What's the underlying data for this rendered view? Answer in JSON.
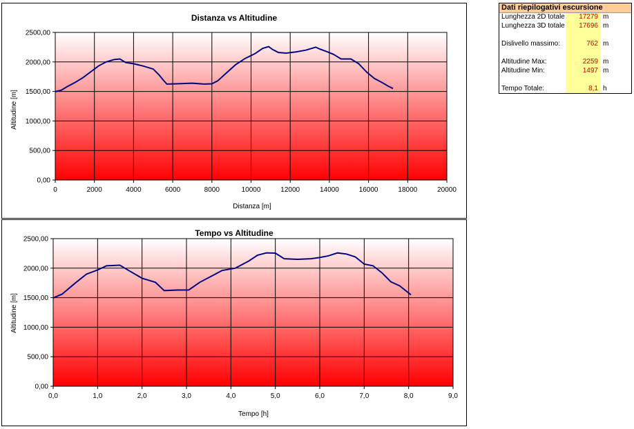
{
  "charts": [
    {
      "type": "line",
      "title": "Distanza vs Altitudine",
      "xlabel": "Distanza [m]",
      "ylabel": "Altitudine [m]",
      "xlim": [
        0,
        20000
      ],
      "ylim": [
        0,
        2500
      ],
      "x_ticks": [
        "0",
        "2000",
        "4000",
        "6000",
        "8000",
        "10000",
        "12000",
        "14000",
        "16000",
        "18000",
        "20000"
      ],
      "y_ticks": [
        "0,00",
        "500,00",
        "1000,00",
        "1500,00",
        "2000,00",
        "2500,00"
      ],
      "grid": true,
      "line_color": "#000080",
      "x": [
        0,
        300,
        600,
        1000,
        1400,
        1800,
        2200,
        2600,
        3000,
        3300,
        3600,
        4000,
        4500,
        5000,
        5300,
        5500,
        5700,
        6200,
        7000,
        7600,
        8000,
        8300,
        8700,
        9200,
        9700,
        10200,
        10600,
        10900,
        11100,
        11400,
        11800,
        12300,
        12800,
        13300,
        13500,
        13900,
        14200,
        14600,
        15100,
        15500,
        15900,
        16300,
        16700,
        17000,
        17250
      ],
      "y": [
        1497,
        1520,
        1580,
        1650,
        1730,
        1830,
        1930,
        2000,
        2040,
        2050,
        1990,
        1970,
        1930,
        1880,
        1780,
        1700,
        1625,
        1630,
        1640,
        1625,
        1630,
        1680,
        1800,
        1950,
        2060,
        2140,
        2230,
        2259,
        2210,
        2160,
        2150,
        2170,
        2200,
        2250,
        2220,
        2170,
        2130,
        2050,
        2050,
        1970,
        1830,
        1720,
        1650,
        1590,
        1550
      ]
    },
    {
      "type": "line",
      "title": "Tempo vs Altitudine",
      "xlabel": "Tempo [h]",
      "ylabel": "Altitudine [m]",
      "xlim": [
        0,
        9
      ],
      "ylim": [
        0,
        2500
      ],
      "x_ticks": [
        "0,0",
        "1,0",
        "2,0",
        "3,0",
        "4,0",
        "5,0",
        "6,0",
        "7,0",
        "8,0",
        "9,0"
      ],
      "y_ticks": [
        "0,00",
        "500,00",
        "1000,00",
        "1500,00",
        "2000,00",
        "2500,00"
      ],
      "grid": true,
      "line_color": "#000080",
      "x": [
        0,
        0.2,
        0.5,
        0.75,
        1.0,
        1.2,
        1.5,
        1.7,
        2.0,
        2.3,
        2.5,
        2.8,
        3.05,
        3.3,
        3.6,
        3.8,
        4.1,
        4.4,
        4.6,
        4.8,
        5.0,
        5.2,
        5.5,
        5.8,
        6.0,
        6.2,
        6.4,
        6.6,
        6.8,
        7.0,
        7.2,
        7.4,
        7.6,
        7.8,
        7.9,
        8.05
      ],
      "y": [
        1497,
        1560,
        1750,
        1900,
        1970,
        2040,
        2050,
        1960,
        1830,
        1760,
        1620,
        1630,
        1630,
        1760,
        1880,
        1960,
        2000,
        2120,
        2220,
        2259,
        2255,
        2160,
        2150,
        2160,
        2180,
        2210,
        2258,
        2240,
        2190,
        2070,
        2040,
        1920,
        1770,
        1700,
        1640,
        1550
      ]
    }
  ],
  "summary": {
    "title": "Dati riepilogativi escursione",
    "rows": [
      {
        "label": "Lunghezza 2D totale",
        "value": "17279",
        "unit": "m"
      },
      {
        "label": "Lunghezza 3D totale",
        "value": "17696",
        "unit": "m"
      },
      {
        "label": "Dislivello massimo:",
        "value": "762",
        "unit": "m"
      },
      {
        "label": "Altitudine Max:",
        "value": "2259",
        "unit": "m"
      },
      {
        "label": "Altitudine Min:",
        "value": "1497",
        "unit": "m"
      },
      {
        "label": "Tempo Totale:",
        "value": "8,1",
        "unit": "h"
      }
    ]
  }
}
